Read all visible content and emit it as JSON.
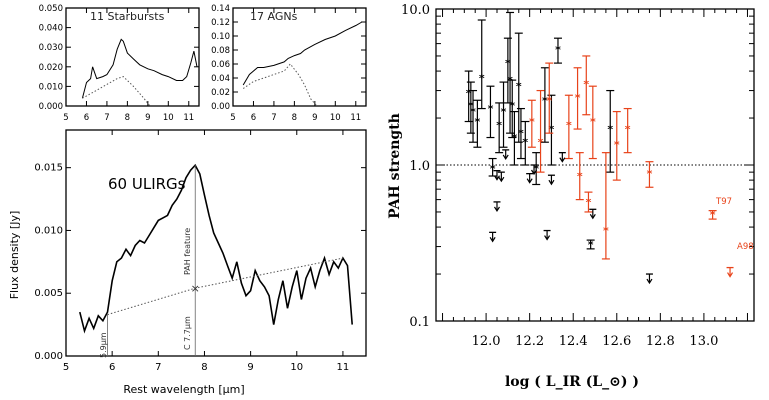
{
  "chart_data": [
    {
      "type": "line",
      "title": "11 Starbursts",
      "xlim": [
        5,
        11.5
      ],
      "ylim": [
        0,
        0.05
      ],
      "x_ticks": [
        "5",
        "6",
        "7",
        "8",
        "9",
        "10",
        "11"
      ],
      "y_ticks": [
        "0.000",
        "0.010",
        "0.020",
        "0.030",
        "0.040",
        "0.050"
      ],
      "series": [
        {
          "style": "solid",
          "x": [
            5.8,
            6.0,
            6.2,
            6.3,
            6.5,
            6.8,
            7.0,
            7.3,
            7.5,
            7.7,
            7.8,
            8.0,
            8.3,
            8.6,
            9.0,
            9.3,
            9.7,
            10.0,
            10.4,
            10.7,
            10.9,
            11.1,
            11.25,
            11.4
          ],
          "y": [
            0.004,
            0.012,
            0.014,
            0.02,
            0.014,
            0.015,
            0.016,
            0.021,
            0.029,
            0.034,
            0.033,
            0.027,
            0.024,
            0.021,
            0.019,
            0.018,
            0.016,
            0.015,
            0.013,
            0.013,
            0.015,
            0.022,
            0.028,
            0.02
          ]
        },
        {
          "style": "dotted",
          "x": [
            5.8,
            6.5,
            7.0,
            7.5,
            7.8,
            8.3,
            8.8,
            9.1
          ],
          "y": [
            0.004,
            0.008,
            0.011,
            0.014,
            0.015,
            0.01,
            0.004,
            0.0
          ]
        }
      ]
    },
    {
      "type": "line",
      "title": "17 AGNs",
      "xlim": [
        5,
        11.5
      ],
      "ylim": [
        0,
        0.14
      ],
      "x_ticks": [
        "5",
        "6",
        "7",
        "8",
        "9",
        "10",
        "11"
      ],
      "y_ticks": [
        "0.00",
        "0.02",
        "0.04",
        "0.06",
        "0.08",
        "0.10",
        "0.12",
        "0.14"
      ],
      "series": [
        {
          "style": "solid",
          "x": [
            5.5,
            5.8,
            6.0,
            6.2,
            6.5,
            7.0,
            7.5,
            7.7,
            8.0,
            8.3,
            8.5,
            9.0,
            9.5,
            10.0,
            10.5,
            11.0,
            11.3
          ],
          "y": [
            0.03,
            0.045,
            0.05,
            0.055,
            0.055,
            0.058,
            0.063,
            0.068,
            0.072,
            0.075,
            0.08,
            0.088,
            0.095,
            0.1,
            0.108,
            0.115,
            0.12
          ]
        },
        {
          "style": "dotted",
          "x": [
            5.5,
            6.0,
            6.5,
            7.0,
            7.5,
            7.8,
            8.2,
            8.5,
            8.8,
            9.1
          ],
          "y": [
            0.025,
            0.035,
            0.04,
            0.045,
            0.05,
            0.06,
            0.045,
            0.03,
            0.01,
            0.0
          ]
        }
      ]
    },
    {
      "type": "line",
      "title": "60 ULIRGs",
      "xlabel": "Rest wavelength [μm]",
      "ylabel": "Flux density [Jy]",
      "xlim": [
        5,
        11.5
      ],
      "ylim": [
        0,
        0.018
      ],
      "x_ticks": [
        "5",
        "6",
        "7",
        "8",
        "9",
        "10",
        "11"
      ],
      "y_ticks": [
        "0.000",
        "0.005",
        "0.010",
        "0.015"
      ],
      "annotations": [
        "PAH feature",
        "C 7.7μm",
        "5.9μm"
      ],
      "series": [
        {
          "style": "solid",
          "x": [
            5.3,
            5.4,
            5.5,
            5.6,
            5.7,
            5.8,
            5.9,
            6.0,
            6.1,
            6.2,
            6.3,
            6.4,
            6.5,
            6.6,
            6.7,
            6.8,
            6.9,
            7.0,
            7.1,
            7.2,
            7.3,
            7.4,
            7.5,
            7.6,
            7.7,
            7.8,
            7.9,
            8.0,
            8.1,
            8.2,
            8.3,
            8.4,
            8.5,
            8.6,
            8.7,
            8.8,
            8.9,
            9.0,
            9.1,
            9.2,
            9.3,
            9.4,
            9.5,
            9.6,
            9.7,
            9.8,
            9.9,
            10.0,
            10.1,
            10.2,
            10.3,
            10.4,
            10.5,
            10.6,
            10.7,
            10.8,
            10.9,
            11.0,
            11.1,
            11.2
          ],
          "y": [
            0.0035,
            0.002,
            0.003,
            0.0022,
            0.0032,
            0.0028,
            0.0035,
            0.006,
            0.0075,
            0.0078,
            0.0085,
            0.008,
            0.0088,
            0.0092,
            0.009,
            0.0096,
            0.0102,
            0.0108,
            0.011,
            0.0112,
            0.012,
            0.0125,
            0.0132,
            0.0142,
            0.0148,
            0.0152,
            0.0145,
            0.0128,
            0.0112,
            0.0098,
            0.009,
            0.0082,
            0.0072,
            0.0062,
            0.0075,
            0.0058,
            0.0048,
            0.0052,
            0.0068,
            0.006,
            0.0055,
            0.0048,
            0.0025,
            0.0045,
            0.006,
            0.0038,
            0.0055,
            0.0068,
            0.0045,
            0.0062,
            0.007,
            0.0055,
            0.0068,
            0.0078,
            0.0065,
            0.0075,
            0.007,
            0.0078,
            0.0072,
            0.0025
          ]
        },
        {
          "style": "dotted",
          "x": [
            5.9,
            7.8,
            11.0
          ],
          "y": [
            0.0033,
            0.0054,
            0.0078
          ]
        }
      ]
    },
    {
      "type": "scatter",
      "xlabel": "log ( L_IR (L_⊙) )",
      "ylabel": "PAH strength",
      "x_scale": "linear",
      "y_scale": "log",
      "xlim": [
        11.77,
        13.23
      ],
      "ylim": [
        0.1,
        10
      ],
      "x_ticks": [
        "12.0",
        "12.2",
        "12.4",
        "12.6",
        "12.8",
        "13.0"
      ],
      "y_ticks": [
        "0.1",
        "1.0",
        "10.0"
      ],
      "reference_line": 1.0,
      "labels": [
        "T97",
        "A98"
      ],
      "series": [
        {
          "color": "#000000",
          "points": [
            {
              "x": 11.92,
              "y": 2.9,
              "lo": 1.9,
              "hi": 4.0
            },
            {
              "x": 11.93,
              "y": 2.4,
              "lo": 1.6,
              "hi": 3.4
            },
            {
              "x": 11.94,
              "y": 2.2,
              "lo": 1.4,
              "hi": 3.0
            },
            {
              "x": 11.96,
              "y": 1.9,
              "lo": 1.3,
              "hi": 2.6
            },
            {
              "x": 11.98,
              "y": 3.6,
              "lo": 2.3,
              "hi": 8.5
            },
            {
              "x": 12.02,
              "y": 2.3,
              "lo": 1.5,
              "hi": 3.2
            },
            {
              "x": 12.03,
              "y": 0.95,
              "lo": 0.85,
              "hi": 1.1
            },
            {
              "x": 12.06,
              "y": 1.8,
              "lo": 1.2,
              "hi": 2.5
            },
            {
              "x": 12.08,
              "y": 2.2,
              "lo": 1.3,
              "hi": 3.4
            },
            {
              "x": 12.1,
              "y": 4.5,
              "lo": 2.5,
              "hi": 6.5
            },
            {
              "x": 12.11,
              "y": 3.5,
              "lo": 1.6,
              "hi": 9.5
            },
            {
              "x": 12.12,
              "y": 2.4,
              "lo": 1.5,
              "hi": 3.5
            },
            {
              "x": 12.13,
              "y": 1.5,
              "lo": 1.0,
              "hi": 2.2
            },
            {
              "x": 12.15,
              "y": 3.2,
              "lo": 1.4,
              "hi": 7.0
            },
            {
              "x": 12.16,
              "y": 1.6,
              "lo": 1.1,
              "hi": 2.3
            },
            {
              "x": 12.18,
              "y": 1.4,
              "lo": 1.0,
              "hi": 1.9
            },
            {
              "x": 12.23,
              "y": 0.95,
              "lo": 0.75,
              "hi": 1.2
            },
            {
              "x": 12.27,
              "y": 2.6,
              "lo": 1.4,
              "hi": 4.2
            },
            {
              "x": 12.3,
              "y": 1.7,
              "lo": 1.0,
              "hi": 2.8
            },
            {
              "x": 12.33,
              "y": 5.5,
              "lo": 4.5,
              "hi": 6.5
            },
            {
              "x": 12.48,
              "y": 0.31,
              "lo": 0.29,
              "hi": 0.33
            },
            {
              "x": 12.57,
              "y": 1.7,
              "lo": 0.9,
              "hi": 3.0
            }
          ]
        },
        {
          "color": "#e8431a",
          "points": [
            {
              "x": 12.21,
              "y": 1.9,
              "lo": 1.3,
              "hi": 2.6
            },
            {
              "x": 12.25,
              "y": 1.4,
              "lo": 0.9,
              "hi": 3.0
            },
            {
              "x": 12.29,
              "y": 2.6,
              "lo": 1.6,
              "hi": 4.5
            },
            {
              "x": 12.38,
              "y": 1.8,
              "lo": 1.1,
              "hi": 2.8
            },
            {
              "x": 12.42,
              "y": 2.7,
              "lo": 1.7,
              "hi": 4.2
            },
            {
              "x": 12.43,
              "y": 0.85,
              "lo": 0.6,
              "hi": 1.2
            },
            {
              "x": 12.46,
              "y": 3.3,
              "lo": 2.1,
              "hi": 5.0
            },
            {
              "x": 12.47,
              "y": 0.58,
              "lo": 0.5,
              "hi": 0.67
            },
            {
              "x": 12.49,
              "y": 1.9,
              "lo": 1.1,
              "hi": 3.2
            },
            {
              "x": 12.55,
              "y": 0.38,
              "lo": 0.25,
              "hi": 1.2
            },
            {
              "x": 12.6,
              "y": 1.35,
              "lo": 0.8,
              "hi": 2.2
            },
            {
              "x": 12.65,
              "y": 1.7,
              "lo": 1.2,
              "hi": 2.3
            },
            {
              "x": 12.75,
              "y": 0.88,
              "lo": 0.72,
              "hi": 1.05
            },
            {
              "x": 13.04,
              "y": 0.48,
              "lo": 0.45,
              "hi": 0.51
            }
          ]
        },
        {
          "type": "upper-limits",
          "color": "#000000",
          "points": [
            {
              "x": 12.05,
              "y": 0.92
            },
            {
              "x": 12.07,
              "y": 0.9
            },
            {
              "x": 12.09,
              "y": 1.25
            },
            {
              "x": 12.2,
              "y": 0.88
            },
            {
              "x": 12.22,
              "y": 1.0
            },
            {
              "x": 12.3,
              "y": 0.86
            },
            {
              "x": 12.35,
              "y": 1.2
            },
            {
              "x": 12.05,
              "y": 0.58
            },
            {
              "x": 12.03,
              "y": 0.37
            },
            {
              "x": 12.28,
              "y": 0.38
            },
            {
              "x": 12.49,
              "y": 0.52
            },
            {
              "x": 12.75,
              "y": 0.2
            }
          ]
        },
        {
          "type": "upper-limits",
          "color": "#e8431a",
          "points": [
            {
              "x": 13.12,
              "y": 0.22
            }
          ]
        }
      ],
      "colors": {
        "black": "#000000",
        "red": "#e8431a"
      }
    }
  ]
}
